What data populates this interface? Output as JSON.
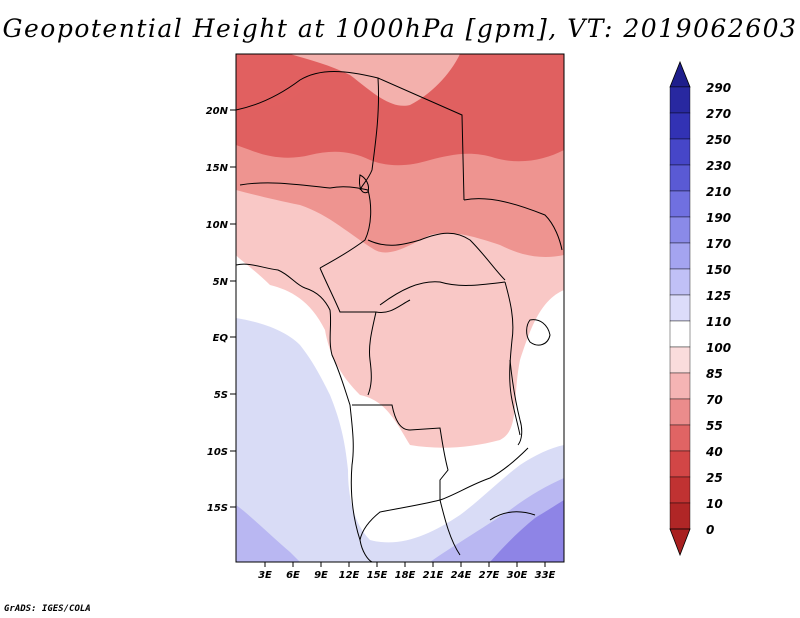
{
  "title": "Geopotential Height at 1000hPa [gpm], VT: 2019062603",
  "credit": "GrADS: IGES/COLA",
  "colors": {
    "land_hot": "#e06060",
    "land_warm": "#ee9490",
    "land_mild": "#f9c8c6",
    "neutral": "#ffffff",
    "ocean": "#d9dcf6",
    "south_cool": "#b9b7f2",
    "south_cold": "#8e84e6"
  },
  "map": {
    "x_ticks": [
      "3E",
      "6E",
      "9E",
      "12E",
      "15E",
      "18E",
      "21E",
      "24E",
      "27E",
      "30E",
      "33E"
    ],
    "y_ticks": [
      "20N",
      "15N",
      "10N",
      "5N",
      "EQ",
      "5S",
      "10S",
      "15S"
    ]
  },
  "colorbar": {
    "labels": [
      "290",
      "270",
      "250",
      "230",
      "210",
      "190",
      "170",
      "150",
      "125",
      "110",
      "100",
      "85",
      "70",
      "55",
      "40",
      "25",
      "10",
      "0"
    ],
    "colors": [
      "#1e1e8c",
      "#2828a0",
      "#3232b4",
      "#4646c8",
      "#5a5ad4",
      "#7070e0",
      "#8a8ae8",
      "#a4a4f0",
      "#c0c0f6",
      "#dcdcfa",
      "#ffffff",
      "#fadcdc",
      "#f5b4b4",
      "#eb8c8c",
      "#e06464",
      "#d24646",
      "#c03232",
      "#a82020"
    ]
  }
}
